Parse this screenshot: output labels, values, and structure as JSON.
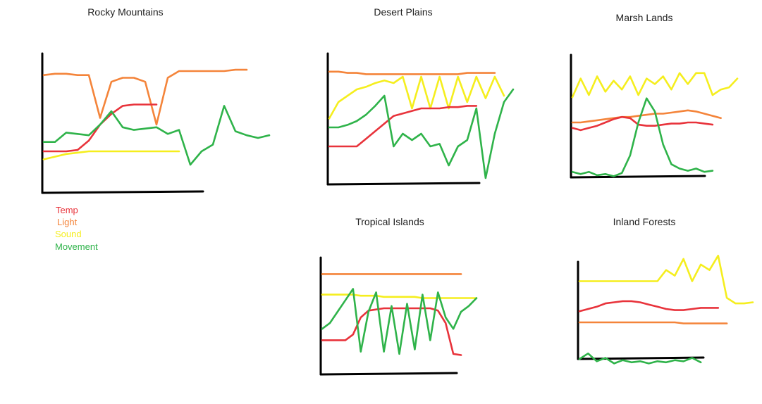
{
  "legend": {
    "items": [
      {
        "label": "Temp",
        "color": "#e8333b"
      },
      {
        "label": "Light",
        "color": "#f4843a"
      },
      {
        "label": "Sound",
        "color": "#f5ee1e"
      },
      {
        "label": "Movement",
        "color": "#2fb34a"
      }
    ]
  },
  "chart_data": [
    {
      "type": "line",
      "title": "Rocky Mountains",
      "xlabel": "",
      "ylabel": "",
      "x": [
        0.0,
        0.05,
        0.1,
        0.15,
        0.2,
        0.25,
        0.3,
        0.35,
        0.4,
        0.45,
        0.5,
        0.55,
        0.6,
        0.65,
        0.7,
        0.75,
        0.8,
        0.85,
        0.9,
        0.95,
        1.0
      ],
      "series": [
        {
          "name": "Light",
          "values": [
            0.87,
            0.88,
            0.88,
            0.87,
            0.87,
            0.55,
            0.82,
            0.85,
            0.85,
            0.82,
            0.5,
            0.85,
            0.9,
            0.9,
            0.9,
            0.9,
            0.9,
            0.91,
            0.91,
            null,
            null
          ]
        },
        {
          "name": "Temp",
          "values": [
            0.3,
            0.3,
            0.3,
            0.31,
            0.38,
            0.5,
            0.58,
            0.64,
            0.65,
            0.65,
            0.65,
            null,
            null,
            null,
            null,
            null,
            null,
            null,
            null,
            null,
            null
          ]
        },
        {
          "name": "Sound",
          "values": [
            0.24,
            0.26,
            0.28,
            0.29,
            0.3,
            0.3,
            0.3,
            0.3,
            0.3,
            0.3,
            0.3,
            0.3,
            0.3,
            null,
            null,
            null,
            null,
            null,
            null,
            null,
            null
          ]
        },
        {
          "name": "Movement",
          "values": [
            0.37,
            0.37,
            0.44,
            0.43,
            0.42,
            0.5,
            0.6,
            0.48,
            0.46,
            0.47,
            0.48,
            0.43,
            0.46,
            0.2,
            0.3,
            0.35,
            0.64,
            0.45,
            0.42,
            0.4,
            0.42
          ]
        }
      ]
    },
    {
      "type": "line",
      "title": "Desert Plains",
      "xlabel": "",
      "ylabel": "",
      "x": [
        0.0,
        0.05,
        0.1,
        0.15,
        0.2,
        0.25,
        0.3,
        0.35,
        0.4,
        0.45,
        0.5,
        0.55,
        0.6,
        0.65,
        0.7,
        0.75,
        0.8,
        0.85,
        0.9,
        0.95,
        1.0
      ],
      "series": [
        {
          "name": "Light",
          "values": [
            0.89,
            0.89,
            0.88,
            0.88,
            0.87,
            0.87,
            0.87,
            0.87,
            0.87,
            0.87,
            0.87,
            0.87,
            0.87,
            0.87,
            0.87,
            0.88,
            0.88,
            0.88,
            0.88,
            null,
            null
          ]
        },
        {
          "name": "Sound",
          "values": [
            0.52,
            0.65,
            0.7,
            0.75,
            0.77,
            0.8,
            0.82,
            0.8,
            0.85,
            0.6,
            0.85,
            0.6,
            0.85,
            0.6,
            0.85,
            0.65,
            0.85,
            0.68,
            0.85,
            0.7,
            null
          ]
        },
        {
          "name": "Temp",
          "values": [
            0.3,
            0.3,
            0.3,
            0.3,
            0.36,
            0.42,
            0.48,
            0.54,
            0.56,
            0.58,
            0.6,
            0.6,
            0.6,
            0.61,
            0.61,
            0.62,
            0.62,
            null,
            null,
            null,
            null
          ]
        },
        {
          "name": "Movement",
          "values": [
            0.45,
            0.45,
            0.47,
            0.5,
            0.55,
            0.62,
            0.7,
            0.3,
            0.4,
            0.35,
            0.4,
            0.3,
            0.32,
            0.15,
            0.3,
            0.35,
            0.6,
            0.05,
            0.4,
            0.65,
            0.75
          ]
        }
      ]
    },
    {
      "type": "line",
      "title": "Marsh Lands",
      "xlabel": "",
      "ylabel": "",
      "x": [
        0.0,
        0.05,
        0.1,
        0.15,
        0.2,
        0.25,
        0.3,
        0.35,
        0.4,
        0.45,
        0.5,
        0.55,
        0.6,
        0.65,
        0.7,
        0.75,
        0.8,
        0.85,
        0.9,
        0.95,
        1.0
      ],
      "series": [
        {
          "name": "Sound",
          "values": [
            0.73,
            0.9,
            0.75,
            0.92,
            0.78,
            0.88,
            0.8,
            0.92,
            0.75,
            0.9,
            0.85,
            0.92,
            0.8,
            0.95,
            0.85,
            0.95,
            0.95,
            0.75,
            0.8,
            0.82,
            0.9
          ]
        },
        {
          "name": "Light",
          "values": [
            0.5,
            0.5,
            0.51,
            0.52,
            0.53,
            0.54,
            0.55,
            0.55,
            0.56,
            0.57,
            0.58,
            0.58,
            0.59,
            0.6,
            0.61,
            0.6,
            0.58,
            0.56,
            0.54,
            null,
            null
          ]
        },
        {
          "name": "Temp",
          "values": [
            0.45,
            0.43,
            0.45,
            0.47,
            0.5,
            0.53,
            0.55,
            0.54,
            0.48,
            0.47,
            0.47,
            0.48,
            0.49,
            0.49,
            0.5,
            0.5,
            0.49,
            0.48,
            null,
            null,
            null
          ]
        },
        {
          "name": "Movement",
          "values": [
            0.05,
            0.03,
            0.05,
            0.02,
            0.03,
            0.01,
            0.04,
            0.2,
            0.5,
            0.72,
            0.6,
            0.3,
            0.12,
            0.08,
            0.06,
            0.08,
            0.05,
            0.06,
            null,
            null,
            null
          ]
        }
      ]
    },
    {
      "type": "line",
      "title": "Tropical Islands",
      "xlabel": "",
      "ylabel": "",
      "x": [
        0.0,
        0.05,
        0.1,
        0.15,
        0.2,
        0.25,
        0.3,
        0.35,
        0.4,
        0.45,
        0.5,
        0.55,
        0.6,
        0.65,
        0.7,
        0.75,
        0.8,
        0.85,
        0.9,
        0.95,
        1.0
      ],
      "series": [
        {
          "name": "Light",
          "values": [
            0.88,
            0.88,
            0.88,
            0.88,
            0.88,
            0.88,
            0.88,
            0.88,
            0.88,
            0.88,
            0.88,
            0.88,
            0.88,
            0.88,
            0.88,
            0.88,
            0.88,
            0.88,
            0.88,
            null,
            null
          ]
        },
        {
          "name": "Sound",
          "values": [
            0.7,
            0.7,
            0.7,
            0.7,
            0.7,
            0.69,
            0.69,
            0.69,
            0.68,
            0.68,
            0.68,
            0.68,
            0.68,
            0.67,
            0.67,
            0.67,
            0.67,
            0.67,
            0.67,
            0.67,
            0.67
          ]
        },
        {
          "name": "Temp",
          "values": [
            0.3,
            0.3,
            0.3,
            0.3,
            0.35,
            0.5,
            0.56,
            0.57,
            0.58,
            0.58,
            0.58,
            0.58,
            0.58,
            0.58,
            0.58,
            0.56,
            0.45,
            0.18,
            0.17,
            null,
            null
          ]
        },
        {
          "name": "Movement",
          "values": [
            0.4,
            0.45,
            0.55,
            0.65,
            0.75,
            0.2,
            0.55,
            0.72,
            0.2,
            0.6,
            0.18,
            0.62,
            0.22,
            0.7,
            0.3,
            0.72,
            0.5,
            0.4,
            0.55,
            0.6,
            0.67
          ]
        }
      ]
    },
    {
      "type": "line",
      "title": "Inland Forests",
      "xlabel": "",
      "ylabel": "",
      "x": [
        0.0,
        0.05,
        0.1,
        0.15,
        0.2,
        0.25,
        0.3,
        0.35,
        0.4,
        0.45,
        0.5,
        0.55,
        0.6,
        0.65,
        0.7,
        0.75,
        0.8,
        0.85,
        0.9,
        0.95,
        1.0
      ],
      "series": [
        {
          "name": "Sound",
          "values": [
            0.75,
            0.75,
            0.75,
            0.75,
            0.75,
            0.75,
            0.75,
            0.75,
            0.75,
            0.75,
            0.85,
            0.8,
            0.95,
            0.75,
            0.9,
            0.85,
            0.98,
            0.6,
            0.55,
            0.55,
            0.56
          ]
        },
        {
          "name": "Temp",
          "values": [
            0.48,
            0.5,
            0.52,
            0.55,
            0.56,
            0.57,
            0.57,
            0.56,
            0.54,
            0.52,
            0.5,
            0.49,
            0.49,
            0.5,
            0.51,
            0.51,
            0.51,
            null,
            null,
            null,
            null
          ]
        },
        {
          "name": "Light",
          "values": [
            0.38,
            0.38,
            0.38,
            0.38,
            0.38,
            0.38,
            0.38,
            0.38,
            0.38,
            0.38,
            0.38,
            0.38,
            0.37,
            0.37,
            0.37,
            0.37,
            0.37,
            0.37,
            null,
            null,
            null
          ]
        },
        {
          "name": "Movement",
          "values": [
            0.05,
            0.1,
            0.03,
            0.06,
            0.01,
            0.04,
            0.02,
            0.03,
            0.01,
            0.03,
            0.02,
            0.04,
            0.03,
            0.06,
            0.02,
            null,
            null,
            null,
            null,
            null,
            null
          ]
        }
      ]
    }
  ]
}
